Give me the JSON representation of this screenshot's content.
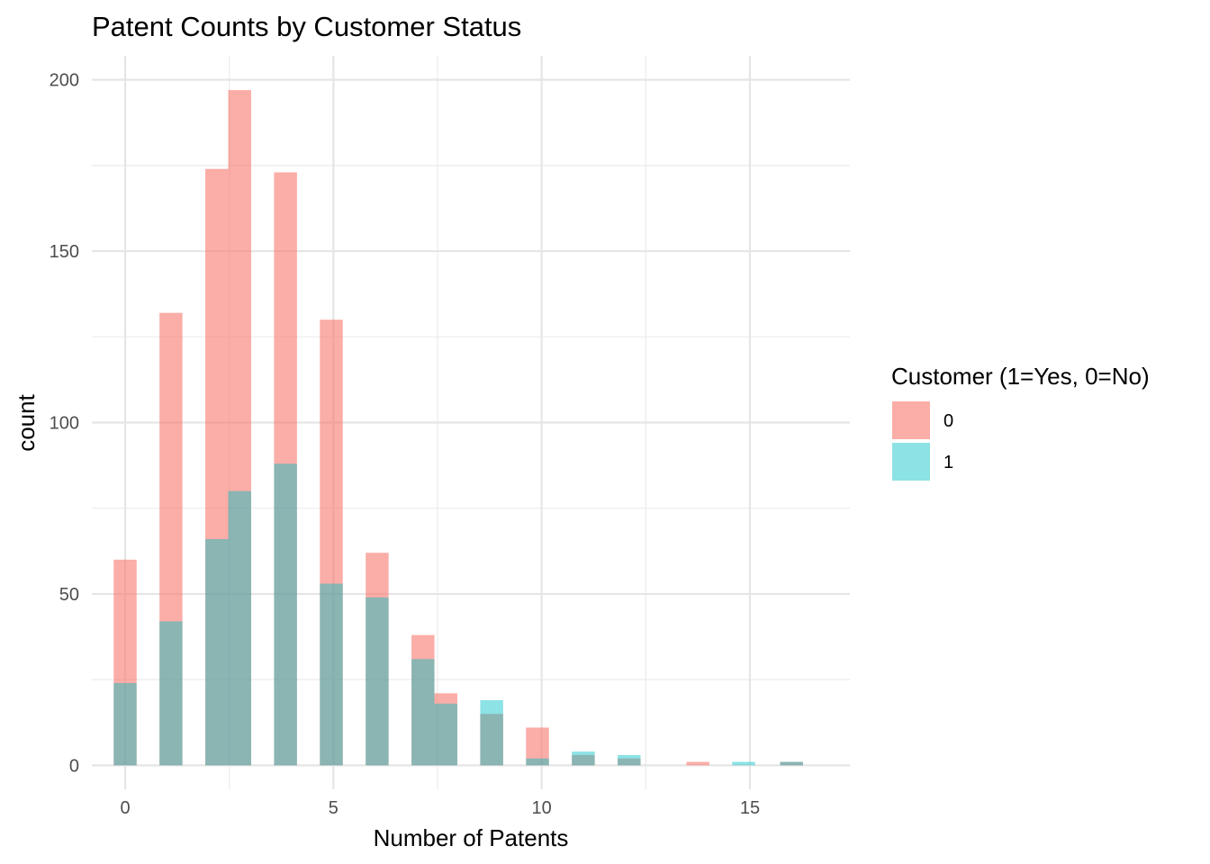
{
  "chart_data": {
    "type": "bar",
    "title": "Patent Counts by Customer Status",
    "xlabel": "Number of Patents",
    "ylabel": "count",
    "xlim": [
      -0.8,
      17.4
    ],
    "ylim": [
      -7,
      207
    ],
    "x_ticks": [
      0,
      5,
      10,
      15
    ],
    "y_ticks": [
      0,
      50,
      100,
      150,
      200
    ],
    "grid": true,
    "bin_width": 0.55,
    "legend": {
      "title": "Customer (1=Yes, 0=No)",
      "position": "right"
    },
    "series": [
      {
        "name": "0",
        "color": "#F8766D",
        "opacity": 0.6,
        "bins": [
          {
            "x": 0.0,
            "count": 60
          },
          {
            "x": 1.1,
            "count": 132
          },
          {
            "x": 2.2,
            "count": 174
          },
          {
            "x": 2.75,
            "count": 197
          },
          {
            "x": 3.85,
            "count": 173
          },
          {
            "x": 4.95,
            "count": 130
          },
          {
            "x": 6.05,
            "count": 62
          },
          {
            "x": 7.15,
            "count": 38
          },
          {
            "x": 7.7,
            "count": 21
          },
          {
            "x": 8.8,
            "count": 15
          },
          {
            "x": 9.9,
            "count": 11
          },
          {
            "x": 11.0,
            "count": 3
          },
          {
            "x": 12.1,
            "count": 2
          },
          {
            "x": 13.75,
            "count": 1
          },
          {
            "x": 16.0,
            "count": 1
          }
        ]
      },
      {
        "name": "1",
        "color": "#00BFC4",
        "opacity": 0.45,
        "bins": [
          {
            "x": 0.0,
            "count": 24
          },
          {
            "x": 1.1,
            "count": 42
          },
          {
            "x": 2.2,
            "count": 66
          },
          {
            "x": 2.75,
            "count": 80
          },
          {
            "x": 3.85,
            "count": 88
          },
          {
            "x": 4.95,
            "count": 53
          },
          {
            "x": 6.05,
            "count": 49
          },
          {
            "x": 7.15,
            "count": 31
          },
          {
            "x": 7.7,
            "count": 18
          },
          {
            "x": 8.8,
            "count": 19
          },
          {
            "x": 9.9,
            "count": 2
          },
          {
            "x": 11.0,
            "count": 4
          },
          {
            "x": 12.1,
            "count": 3
          },
          {
            "x": 14.85,
            "count": 1
          },
          {
            "x": 16.0,
            "count": 1
          }
        ]
      }
    ]
  }
}
